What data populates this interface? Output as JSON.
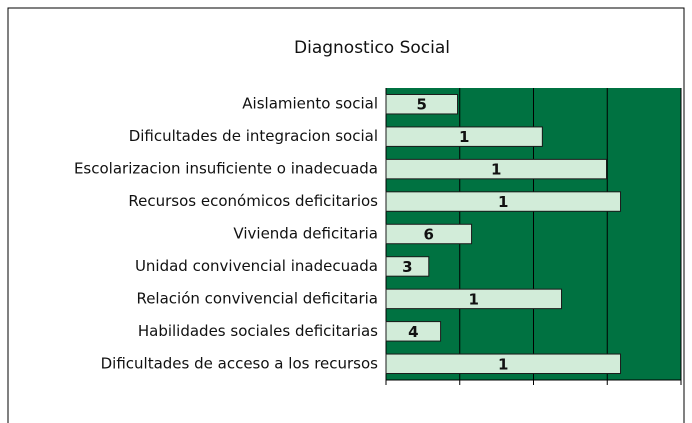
{
  "chart_data": {
    "type": "barh",
    "title": "Diagnostico Social",
    "categories": [
      "Aislamiento social",
      "Dificultades de integracion social",
      "Escolarizacion insuficiente o inadecuada",
      "Recursos económicos deficitarios",
      "Vivienda deficitaria",
      "Unidad convivencial inadecuada",
      "Relación convivencial deficitaria",
      "Habilidades sociales deficitarias",
      "Dificultades de acceso a los recursos"
    ],
    "values": [
      0.97,
      2.12,
      2.99,
      3.18,
      1.16,
      0.58,
      2.38,
      0.74,
      3.18
    ],
    "labels": [
      "5",
      "1",
      "1",
      "1",
      "6",
      "3",
      "1",
      "4",
      "1"
    ],
    "color": "#d2ecd9",
    "background": "#007241",
    "xlim": [
      0,
      4
    ],
    "xticks": [
      0,
      1,
      2,
      3,
      4
    ],
    "grid": true
  }
}
